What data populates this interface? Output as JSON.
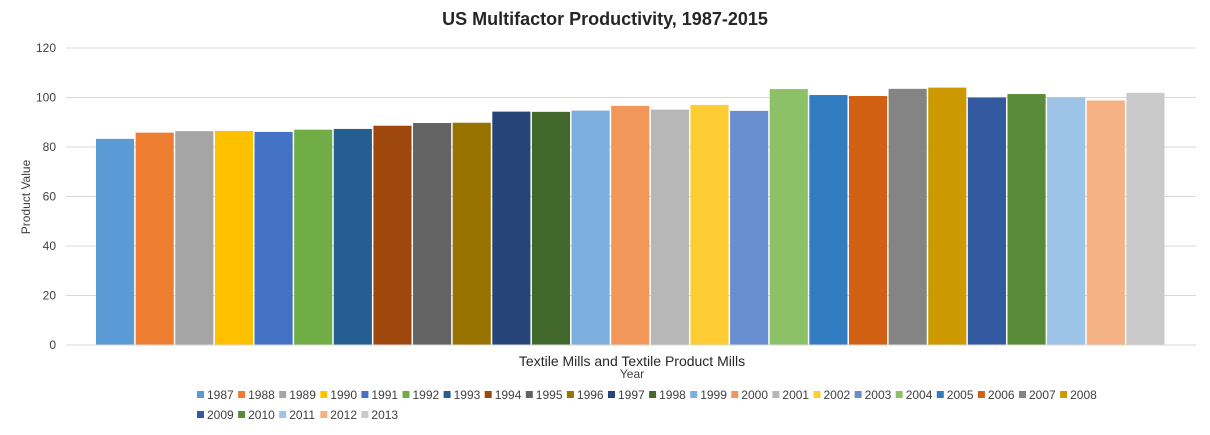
{
  "chart_data": {
    "type": "bar",
    "title": "US Multifactor Productivity, 1987-2015",
    "xlabel": "Year",
    "ylabel": "Product Value",
    "categories": [
      "Textile Mills and Textile Product Mills"
    ],
    "ylim": [
      0,
      120
    ],
    "yticks": [
      0,
      20,
      40,
      60,
      80,
      100,
      120
    ],
    "grid": true,
    "legend_position": "bottom",
    "series": [
      {
        "name": "1987",
        "values": [
          83.3
        ],
        "color": "#5B9BD5"
      },
      {
        "name": "1988",
        "values": [
          85.8
        ],
        "color": "#ED7D31"
      },
      {
        "name": "1989",
        "values": [
          86.4
        ],
        "color": "#A5A5A5"
      },
      {
        "name": "1990",
        "values": [
          86.5
        ],
        "color": "#FFC000"
      },
      {
        "name": "1991",
        "values": [
          86.1
        ],
        "color": "#4472C4"
      },
      {
        "name": "1992",
        "values": [
          87.0
        ],
        "color": "#70AD47"
      },
      {
        "name": "1993",
        "values": [
          87.3
        ],
        "color": "#255E91"
      },
      {
        "name": "1994",
        "values": [
          88.6
        ],
        "color": "#9E480E"
      },
      {
        "name": "1995",
        "values": [
          89.7
        ],
        "color": "#636363"
      },
      {
        "name": "1996",
        "values": [
          89.8
        ],
        "color": "#997300"
      },
      {
        "name": "1997",
        "values": [
          94.3
        ],
        "color": "#264478"
      },
      {
        "name": "1998",
        "values": [
          94.2
        ],
        "color": "#43682B"
      },
      {
        "name": "1999",
        "values": [
          94.7
        ],
        "color": "#7CAFDD"
      },
      {
        "name": "2000",
        "values": [
          96.6
        ],
        "color": "#F1975A"
      },
      {
        "name": "2001",
        "values": [
          95.1
        ],
        "color": "#B7B7B7"
      },
      {
        "name": "2002",
        "values": [
          97.0
        ],
        "color": "#FFCD33"
      },
      {
        "name": "2003",
        "values": [
          94.6
        ],
        "color": "#698ED0"
      },
      {
        "name": "2004",
        "values": [
          103.4
        ],
        "color": "#8CC168"
      },
      {
        "name": "2005",
        "values": [
          101.0
        ],
        "color": "#327DC2"
      },
      {
        "name": "2006",
        "values": [
          100.6
        ],
        "color": "#D26012"
      },
      {
        "name": "2007",
        "values": [
          103.5
        ],
        "color": "#848484"
      },
      {
        "name": "2008",
        "values": [
          104.0
        ],
        "color": "#CC9A00"
      },
      {
        "name": "2009",
        "values": [
          100.0
        ],
        "color": "#335AA1"
      },
      {
        "name": "2010",
        "values": [
          101.4
        ],
        "color": "#5A8B39"
      },
      {
        "name": "2011",
        "values": [
          100.1
        ],
        "color": "#9DC3E6"
      },
      {
        "name": "2012",
        "values": [
          98.8
        ],
        "color": "#F4B183"
      },
      {
        "name": "2013",
        "values": [
          101.9
        ],
        "color": "#C9C9C9"
      }
    ]
  }
}
